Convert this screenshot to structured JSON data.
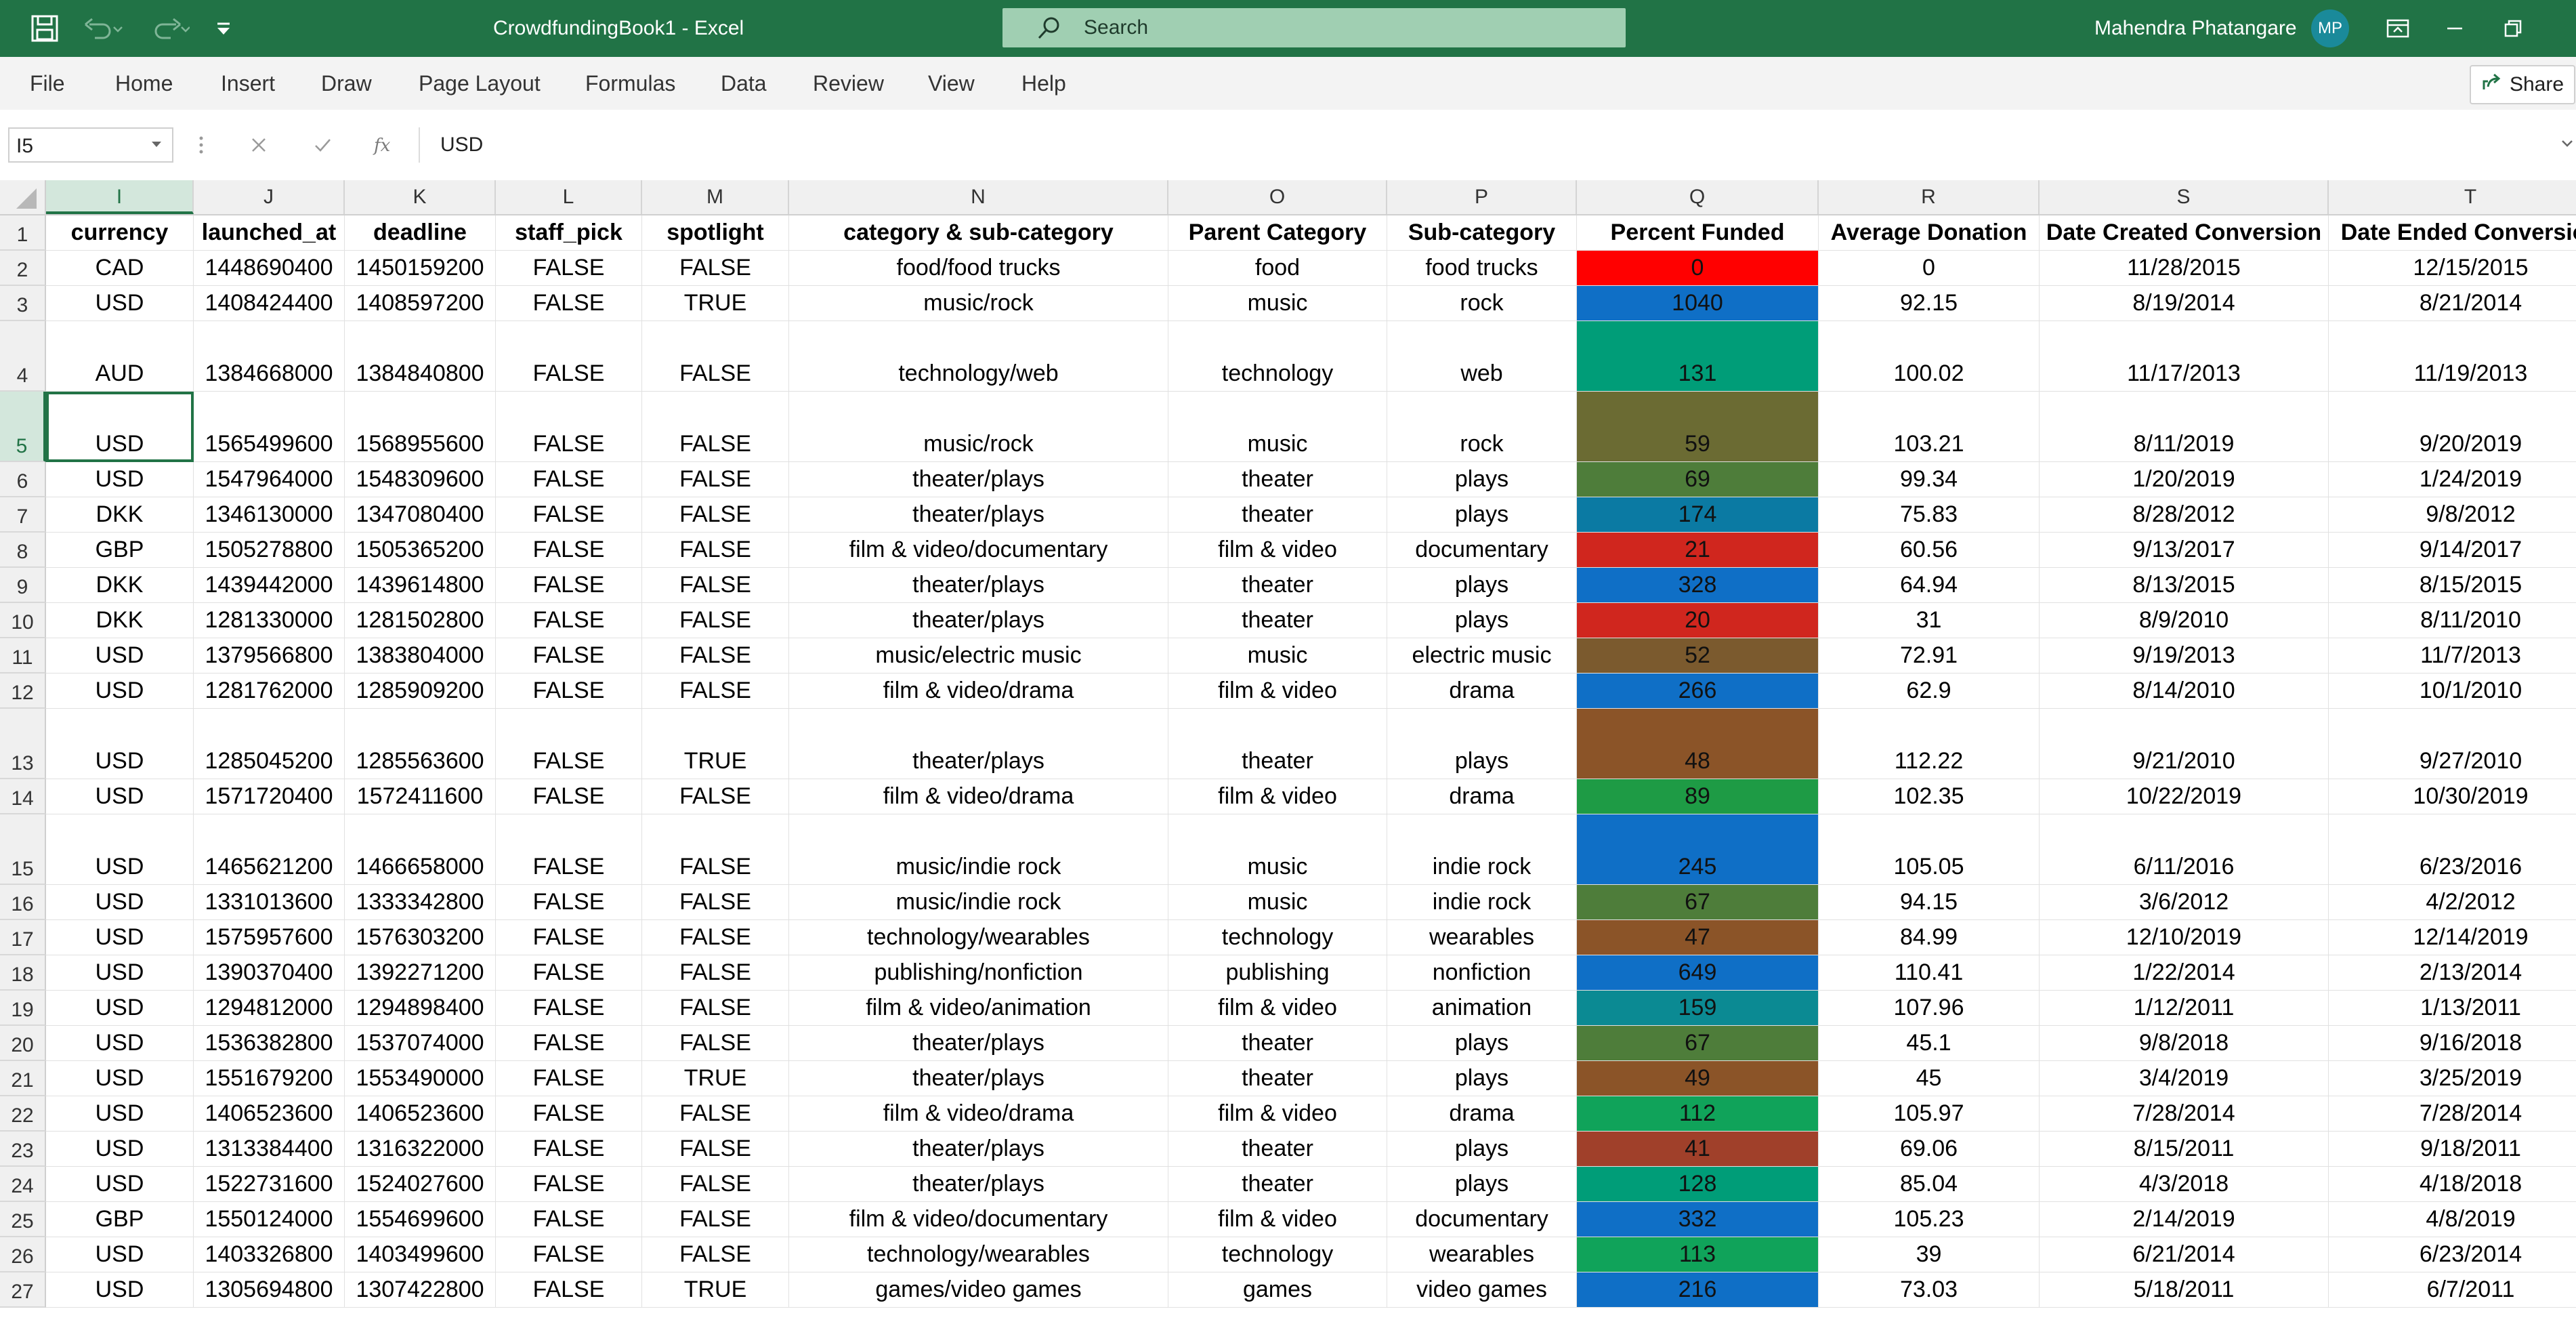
{
  "titlebar": {
    "title": "CrowdfundingBook1  -  Excel",
    "search_placeholder": "Search",
    "user_name": "Mahendra Phatangare",
    "user_initials": "MP"
  },
  "menu": [
    "File",
    "Home",
    "Insert",
    "Draw",
    "Page Layout",
    "Formulas",
    "Data",
    "Review",
    "View",
    "Help"
  ],
  "share_label": "Share",
  "formula_bar": {
    "name_box": "I5",
    "value": "USD"
  },
  "columns": [
    "I",
    "J",
    "K",
    "L",
    "M",
    "N",
    "O",
    "P",
    "Q",
    "R",
    "S",
    "T"
  ],
  "selected_column": "I",
  "selected_row": "5",
  "header_row": {
    "num": "1",
    "cells": [
      "currency",
      "launched_at",
      "deadline",
      "staff_pick",
      "spotlight",
      "category & sub-category",
      "Parent Category",
      "Sub-category",
      "Percent Funded",
      "Average Donation",
      "Date Created Conversion",
      "Date Ended Conversion"
    ]
  },
  "rows": [
    {
      "num": "2",
      "tall": false,
      "cells": [
        "CAD",
        "1448690400",
        "1450159200",
        "FALSE",
        "FALSE",
        "food/food trucks",
        "food",
        "food trucks",
        "0",
        "0",
        "11/28/2015",
        "12/15/2015"
      ],
      "pf_color": "#ff0000"
    },
    {
      "num": "3",
      "tall": false,
      "cells": [
        "USD",
        "1408424400",
        "1408597200",
        "FALSE",
        "TRUE",
        "music/rock",
        "music",
        "rock",
        "1040",
        "92.15",
        "8/19/2014",
        "8/21/2014"
      ],
      "pf_color": "#0f6fc6"
    },
    {
      "num": "4",
      "tall": true,
      "cells": [
        "AUD",
        "1384668000",
        "1384840800",
        "FALSE",
        "FALSE",
        "technology/web",
        "technology",
        "web",
        "131",
        "100.02",
        "11/17/2013",
        "11/19/2013"
      ],
      "pf_color": "#009d78"
    },
    {
      "num": "5",
      "tall": true,
      "cells": [
        "USD",
        "1565499600",
        "1568955600",
        "FALSE",
        "FALSE",
        "music/rock",
        "music",
        "rock",
        "59",
        "103.21",
        "8/11/2019",
        "9/20/2019"
      ],
      "pf_color": "#6b6b33"
    },
    {
      "num": "6",
      "tall": false,
      "cells": [
        "USD",
        "1547964000",
        "1548309600",
        "FALSE",
        "FALSE",
        "theater/plays",
        "theater",
        "plays",
        "69",
        "99.34",
        "1/20/2019",
        "1/24/2019"
      ],
      "pf_color": "#4e7d3a"
    },
    {
      "num": "7",
      "tall": false,
      "cells": [
        "DKK",
        "1346130000",
        "1347080400",
        "FALSE",
        "FALSE",
        "theater/plays",
        "theater",
        "plays",
        "174",
        "75.83",
        "8/28/2012",
        "9/8/2012"
      ],
      "pf_color": "#0b7aa3"
    },
    {
      "num": "8",
      "tall": false,
      "cells": [
        "GBP",
        "1505278800",
        "1505365200",
        "FALSE",
        "FALSE",
        "film & video/documentary",
        "film & video",
        "documentary",
        "21",
        "60.56",
        "9/13/2017",
        "9/14/2017"
      ],
      "pf_color": "#d0261e"
    },
    {
      "num": "9",
      "tall": false,
      "cells": [
        "DKK",
        "1439442000",
        "1439614800",
        "FALSE",
        "FALSE",
        "theater/plays",
        "theater",
        "plays",
        "328",
        "64.94",
        "8/13/2015",
        "8/15/2015"
      ],
      "pf_color": "#0f6fc6"
    },
    {
      "num": "10",
      "tall": false,
      "cells": [
        "DKK",
        "1281330000",
        "1281502800",
        "FALSE",
        "FALSE",
        "theater/plays",
        "theater",
        "plays",
        "20",
        "31",
        "8/9/2010",
        "8/11/2010"
      ],
      "pf_color": "#d0261e"
    },
    {
      "num": "11",
      "tall": false,
      "cells": [
        "USD",
        "1379566800",
        "1383804000",
        "FALSE",
        "FALSE",
        "music/electric music",
        "music",
        "electric music",
        "52",
        "72.91",
        "9/19/2013",
        "11/7/2013"
      ],
      "pf_color": "#7b5a2e"
    },
    {
      "num": "12",
      "tall": false,
      "cells": [
        "USD",
        "1281762000",
        "1285909200",
        "FALSE",
        "FALSE",
        "film & video/drama",
        "film & video",
        "drama",
        "266",
        "62.9",
        "8/14/2010",
        "10/1/2010"
      ],
      "pf_color": "#0f6fc6"
    },
    {
      "num": "13",
      "tall": true,
      "cells": [
        "USD",
        "1285045200",
        "1285563600",
        "FALSE",
        "TRUE",
        "theater/plays",
        "theater",
        "plays",
        "48",
        "112.22",
        "9/21/2010",
        "9/27/2010"
      ],
      "pf_color": "#8b5428"
    },
    {
      "num": "14",
      "tall": false,
      "cells": [
        "USD",
        "1571720400",
        "1572411600",
        "FALSE",
        "FALSE",
        "film & video/drama",
        "film & video",
        "drama",
        "89",
        "102.35",
        "10/22/2019",
        "10/30/2019"
      ],
      "pf_color": "#1e9b45"
    },
    {
      "num": "15",
      "tall": true,
      "cells": [
        "USD",
        "1465621200",
        "1466658000",
        "FALSE",
        "FALSE",
        "music/indie rock",
        "music",
        "indie rock",
        "245",
        "105.05",
        "6/11/2016",
        "6/23/2016"
      ],
      "pf_color": "#0f6fc6"
    },
    {
      "num": "16",
      "tall": false,
      "cells": [
        "USD",
        "1331013600",
        "1333342800",
        "FALSE",
        "FALSE",
        "music/indie rock",
        "music",
        "indie rock",
        "67",
        "94.15",
        "3/6/2012",
        "4/2/2012"
      ],
      "pf_color": "#4e7d3a"
    },
    {
      "num": "17",
      "tall": false,
      "cells": [
        "USD",
        "1575957600",
        "1576303200",
        "FALSE",
        "FALSE",
        "technology/wearables",
        "technology",
        "wearables",
        "47",
        "84.99",
        "12/10/2019",
        "12/14/2019"
      ],
      "pf_color": "#8b5428"
    },
    {
      "num": "18",
      "tall": false,
      "cells": [
        "USD",
        "1390370400",
        "1392271200",
        "FALSE",
        "FALSE",
        "publishing/nonfiction",
        "publishing",
        "nonfiction",
        "649",
        "110.41",
        "1/22/2014",
        "2/13/2014"
      ],
      "pf_color": "#0f6fc6"
    },
    {
      "num": "19",
      "tall": false,
      "cells": [
        "USD",
        "1294812000",
        "1294898400",
        "FALSE",
        "FALSE",
        "film & video/animation",
        "film & video",
        "animation",
        "159",
        "107.96",
        "1/12/2011",
        "1/13/2011"
      ],
      "pf_color": "#0b8a93"
    },
    {
      "num": "20",
      "tall": false,
      "cells": [
        "USD",
        "1536382800",
        "1537074000",
        "FALSE",
        "FALSE",
        "theater/plays",
        "theater",
        "plays",
        "67",
        "45.1",
        "9/8/2018",
        "9/16/2018"
      ],
      "pf_color": "#4e7d3a"
    },
    {
      "num": "21",
      "tall": false,
      "cells": [
        "USD",
        "1551679200",
        "1553490000",
        "FALSE",
        "TRUE",
        "theater/plays",
        "theater",
        "plays",
        "49",
        "45",
        "3/4/2019",
        "3/25/2019"
      ],
      "pf_color": "#8b5428"
    },
    {
      "num": "22",
      "tall": false,
      "cells": [
        "USD",
        "1406523600",
        "1406523600",
        "FALSE",
        "FALSE",
        "film & video/drama",
        "film & video",
        "drama",
        "112",
        "105.97",
        "7/28/2014",
        "7/28/2014"
      ],
      "pf_color": "#10a35a"
    },
    {
      "num": "23",
      "tall": false,
      "cells": [
        "USD",
        "1313384400",
        "1316322000",
        "FALSE",
        "FALSE",
        "theater/plays",
        "theater",
        "plays",
        "41",
        "69.06",
        "8/15/2011",
        "9/18/2011"
      ],
      "pf_color": "#a0402a"
    },
    {
      "num": "24",
      "tall": false,
      "cells": [
        "USD",
        "1522731600",
        "1524027600",
        "FALSE",
        "FALSE",
        "theater/plays",
        "theater",
        "plays",
        "128",
        "85.04",
        "4/3/2018",
        "4/18/2018"
      ],
      "pf_color": "#009d78"
    },
    {
      "num": "25",
      "tall": false,
      "cells": [
        "GBP",
        "1550124000",
        "1554699600",
        "FALSE",
        "FALSE",
        "film & video/documentary",
        "film & video",
        "documentary",
        "332",
        "105.23",
        "2/14/2019",
        "4/8/2019"
      ],
      "pf_color": "#0f6fc6"
    },
    {
      "num": "26",
      "tall": false,
      "cells": [
        "USD",
        "1403326800",
        "1403499600",
        "FALSE",
        "FALSE",
        "technology/wearables",
        "technology",
        "wearables",
        "113",
        "39",
        "6/21/2014",
        "6/23/2014"
      ],
      "pf_color": "#10a35a"
    },
    {
      "num": "27",
      "tall": false,
      "cells": [
        "USD",
        "1305694800",
        "1307422800",
        "FALSE",
        "TRUE",
        "games/video games",
        "games",
        "video games",
        "216",
        "73.03",
        "5/18/2011",
        "6/7/2011"
      ],
      "pf_color": "#0f6fc6"
    }
  ]
}
